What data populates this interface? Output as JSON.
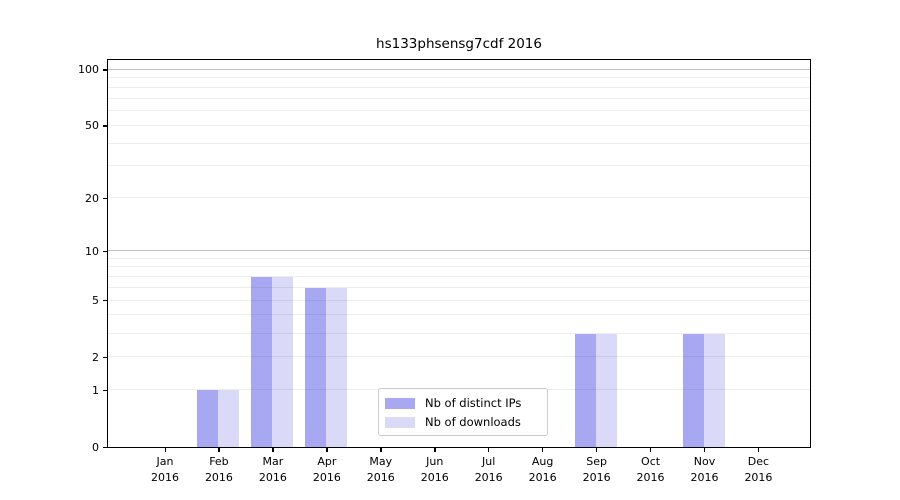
{
  "chart_data": {
    "type": "bar",
    "title": "hs133phsensg7cdf 2016",
    "categories": [
      "Jan",
      "Feb",
      "Mar",
      "Apr",
      "May",
      "Jun",
      "Jul",
      "Aug",
      "Sep",
      "Oct",
      "Nov",
      "Dec"
    ],
    "x_year_label": "2016",
    "series": [
      {
        "name": "Nb of distinct IPs",
        "color": "#a8a8f2",
        "values": [
          0,
          1,
          7,
          6,
          0,
          0,
          0,
          0,
          3,
          0,
          3,
          0
        ]
      },
      {
        "name": "Nb of downloads",
        "color": "#dadaf8",
        "values": [
          0,
          1,
          7,
          6,
          0,
          0,
          0,
          0,
          3,
          0,
          3,
          0
        ]
      }
    ],
    "y_scale": "log1p",
    "ylim": [
      0,
      113
    ],
    "y_ticks": [
      0,
      1,
      2,
      5,
      10,
      20,
      50,
      100
    ],
    "y_major_gridlines": [
      10,
      100
    ],
    "y_minor_gridlines": [
      1,
      2,
      3,
      4,
      5,
      6,
      7,
      8,
      9,
      20,
      30,
      40,
      50,
      60,
      70,
      80,
      90
    ],
    "grid": true,
    "legend_position": "inside-bottom-center",
    "colors": {
      "bar_distinct_ips": "#a8a8f2",
      "bar_downloads": "#dadaf8",
      "grid_major": "#b8b8b8",
      "grid_minor": "#ebebeb",
      "axis": "#000000"
    }
  }
}
